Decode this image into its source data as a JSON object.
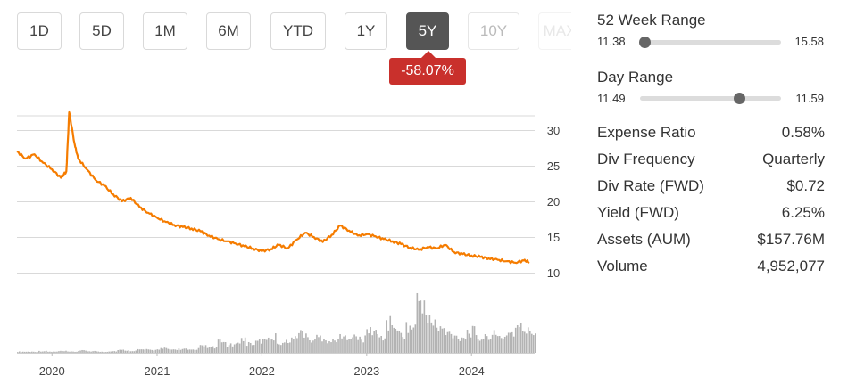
{
  "periods": [
    {
      "label": "1D",
      "state": "normal"
    },
    {
      "label": "5D",
      "state": "normal"
    },
    {
      "label": "1M",
      "state": "normal"
    },
    {
      "label": "6M",
      "state": "normal"
    },
    {
      "label": "YTD",
      "state": "normal"
    },
    {
      "label": "1Y",
      "state": "normal"
    },
    {
      "label": "5Y",
      "state": "active"
    },
    {
      "label": "10Y",
      "state": "disabled"
    },
    {
      "label": "MAX",
      "state": "faded"
    }
  ],
  "change_badge": "-58.07%",
  "week52": {
    "title": "52 Week Range",
    "low": "11.38",
    "high": "15.58",
    "position": 0.03
  },
  "day": {
    "title": "Day Range",
    "low": "11.49",
    "high": "11.59",
    "position": 0.7
  },
  "stats": [
    {
      "label": "Expense Ratio",
      "value": "0.58%"
    },
    {
      "label": "Div Frequency",
      "value": "Quarterly"
    },
    {
      "label": "Div Rate (FWD)",
      "value": "$0.72"
    },
    {
      "label": "Yield (FWD)",
      "value": "6.25%"
    },
    {
      "label": "Assets (AUM)",
      "value": "$157.76M"
    },
    {
      "label": "Volume",
      "value": "4,952,077"
    }
  ],
  "colors": {
    "line": "#f57c00",
    "volume": "#b3b3b3",
    "badge": "#c9302c",
    "active_tab": "#555555"
  },
  "chart_data": {
    "type": "line",
    "title": "",
    "xlabel": "",
    "ylabel": "",
    "y_ticks": [
      10,
      15,
      20,
      25,
      30
    ],
    "x_ticks": [
      "2020",
      "2021",
      "2022",
      "2023",
      "2024"
    ],
    "ylim": [
      8.5,
      32
    ],
    "grid": true,
    "series": [
      {
        "points": [
          [
            "2019-09",
            27.0
          ],
          [
            "2019-10",
            26.0
          ],
          [
            "2019-11",
            26.6
          ],
          [
            "2019-12",
            25.4
          ],
          [
            "2020-01",
            24.5
          ],
          [
            "2020-02",
            23.3
          ],
          [
            "2020-02-20",
            24.2
          ],
          [
            "2020-03",
            32.5
          ],
          [
            "2020-03-20",
            28.0
          ],
          [
            "2020-04",
            26.0
          ],
          [
            "2020-05",
            24.5
          ],
          [
            "2020-06",
            23.0
          ],
          [
            "2020-07",
            22.2
          ],
          [
            "2020-08",
            21.0
          ],
          [
            "2020-09",
            20.0
          ],
          [
            "2020-10",
            20.5
          ],
          [
            "2020-11",
            19.2
          ],
          [
            "2020-12",
            18.4
          ],
          [
            "2021-01",
            17.7
          ],
          [
            "2021-02",
            17.1
          ],
          [
            "2021-03",
            16.7
          ],
          [
            "2021-04",
            16.4
          ],
          [
            "2021-05",
            16.2
          ],
          [
            "2021-06",
            15.8
          ],
          [
            "2021-07",
            15.2
          ],
          [
            "2021-08",
            14.7
          ],
          [
            "2021-09",
            14.4
          ],
          [
            "2021-10",
            14.1
          ],
          [
            "2021-11",
            13.7
          ],
          [
            "2021-12",
            13.4
          ],
          [
            "2022-01",
            13.0
          ],
          [
            "2022-02",
            13.3
          ],
          [
            "2022-03",
            13.9
          ],
          [
            "2022-04",
            13.4
          ],
          [
            "2022-05",
            14.6
          ],
          [
            "2022-06",
            15.6
          ],
          [
            "2022-07",
            15.0
          ],
          [
            "2022-08",
            14.3
          ],
          [
            "2022-09",
            15.3
          ],
          [
            "2022-10",
            16.6
          ],
          [
            "2022-11",
            15.9
          ],
          [
            "2022-12",
            15.2
          ],
          [
            "2023-01",
            15.4
          ],
          [
            "2023-02",
            15.1
          ],
          [
            "2023-03",
            14.7
          ],
          [
            "2023-04",
            14.4
          ],
          [
            "2023-05",
            14.0
          ],
          [
            "2023-06",
            13.5
          ],
          [
            "2023-07",
            13.2
          ],
          [
            "2023-08",
            13.6
          ],
          [
            "2023-09",
            13.4
          ],
          [
            "2023-10",
            13.9
          ],
          [
            "2023-11",
            12.9
          ],
          [
            "2023-12",
            12.6
          ],
          [
            "2024-01",
            12.4
          ],
          [
            "2024-02",
            12.2
          ],
          [
            "2024-03",
            12.0
          ],
          [
            "2024-04",
            11.8
          ],
          [
            "2024-05",
            11.6
          ],
          [
            "2024-06",
            11.4
          ],
          [
            "2024-07",
            11.7
          ],
          [
            "2024-07-20",
            11.5
          ]
        ]
      }
    ],
    "volume_relative": [
      0.02,
      0.02,
      0.03,
      0.02,
      0.03,
      0.02,
      0.04,
      0.03,
      0.02,
      0.03,
      0.05,
      0.04,
      0.06,
      0.05,
      0.08,
      0.06,
      0.07,
      0.05,
      0.12,
      0.1,
      0.2,
      0.14,
      0.25,
      0.18,
      0.22,
      0.3,
      0.2,
      0.26,
      0.38,
      0.24,
      0.3,
      0.22,
      0.28,
      0.34,
      0.26,
      0.42,
      0.3,
      0.55,
      0.36,
      0.48,
      1.0,
      0.6,
      0.44,
      0.36,
      0.3,
      0.4,
      0.28,
      0.34,
      0.3,
      0.38,
      0.46,
      0.4
    ]
  }
}
